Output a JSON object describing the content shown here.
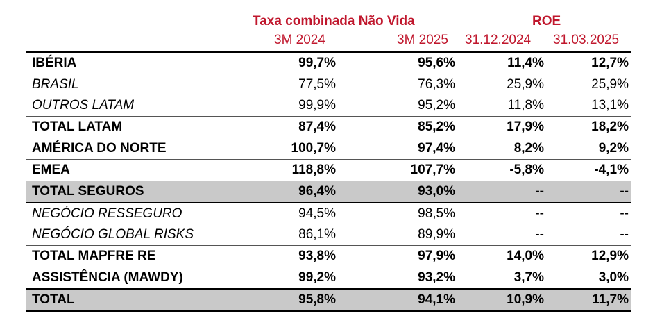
{
  "header": {
    "group1_title": "Taxa combinada Não Vida",
    "group2_title": "ROE",
    "columns": [
      "3M 2024",
      "3M 2025",
      "31.12.2024",
      "31.03.2025"
    ]
  },
  "rows": [
    {
      "label": "IBÉRIA",
      "values": [
        "99,7%",
        "95,6%",
        "11,4%",
        "12,7%"
      ]
    },
    {
      "label": "BRASIL",
      "values": [
        "77,5%",
        "76,3%",
        "25,9%",
        "25,9%"
      ]
    },
    {
      "label": "OUTROS LATAM",
      "values": [
        "99,9%",
        "95,2%",
        "11,8%",
        "13,1%"
      ]
    },
    {
      "label": "TOTAL LATAM",
      "values": [
        "87,4%",
        "85,2%",
        "17,9%",
        "18,2%"
      ]
    },
    {
      "label": "AMÉRICA DO NORTE",
      "values": [
        "100,7%",
        "97,4%",
        "8,2%",
        "9,2%"
      ]
    },
    {
      "label": "EMEA",
      "values": [
        "118,8%",
        "107,7%",
        "-5,8%",
        "-4,1%"
      ]
    },
    {
      "label": "TOTAL SEGUROS",
      "values": [
        "96,4%",
        "93,0%",
        "--",
        "--"
      ]
    },
    {
      "label": "NEGÓCIO RESSEGURO",
      "values": [
        "94,5%",
        "98,5%",
        "--",
        "--"
      ]
    },
    {
      "label": "NEGÓCIO GLOBAL RISKS",
      "values": [
        "86,1%",
        "89,9%",
        "--",
        "--"
      ]
    },
    {
      "label": "TOTAL MAPFRE RE",
      "values": [
        "93,8%",
        "97,9%",
        "14,0%",
        "12,9%"
      ]
    },
    {
      "label": "ASSISTÊNCIA (MAWDY)",
      "values": [
        "99,2%",
        "93,2%",
        "3,7%",
        "3,0%"
      ]
    },
    {
      "label": "TOTAL",
      "values": [
        "95,8%",
        "94,1%",
        "10,9%",
        "11,7%"
      ]
    }
  ]
}
